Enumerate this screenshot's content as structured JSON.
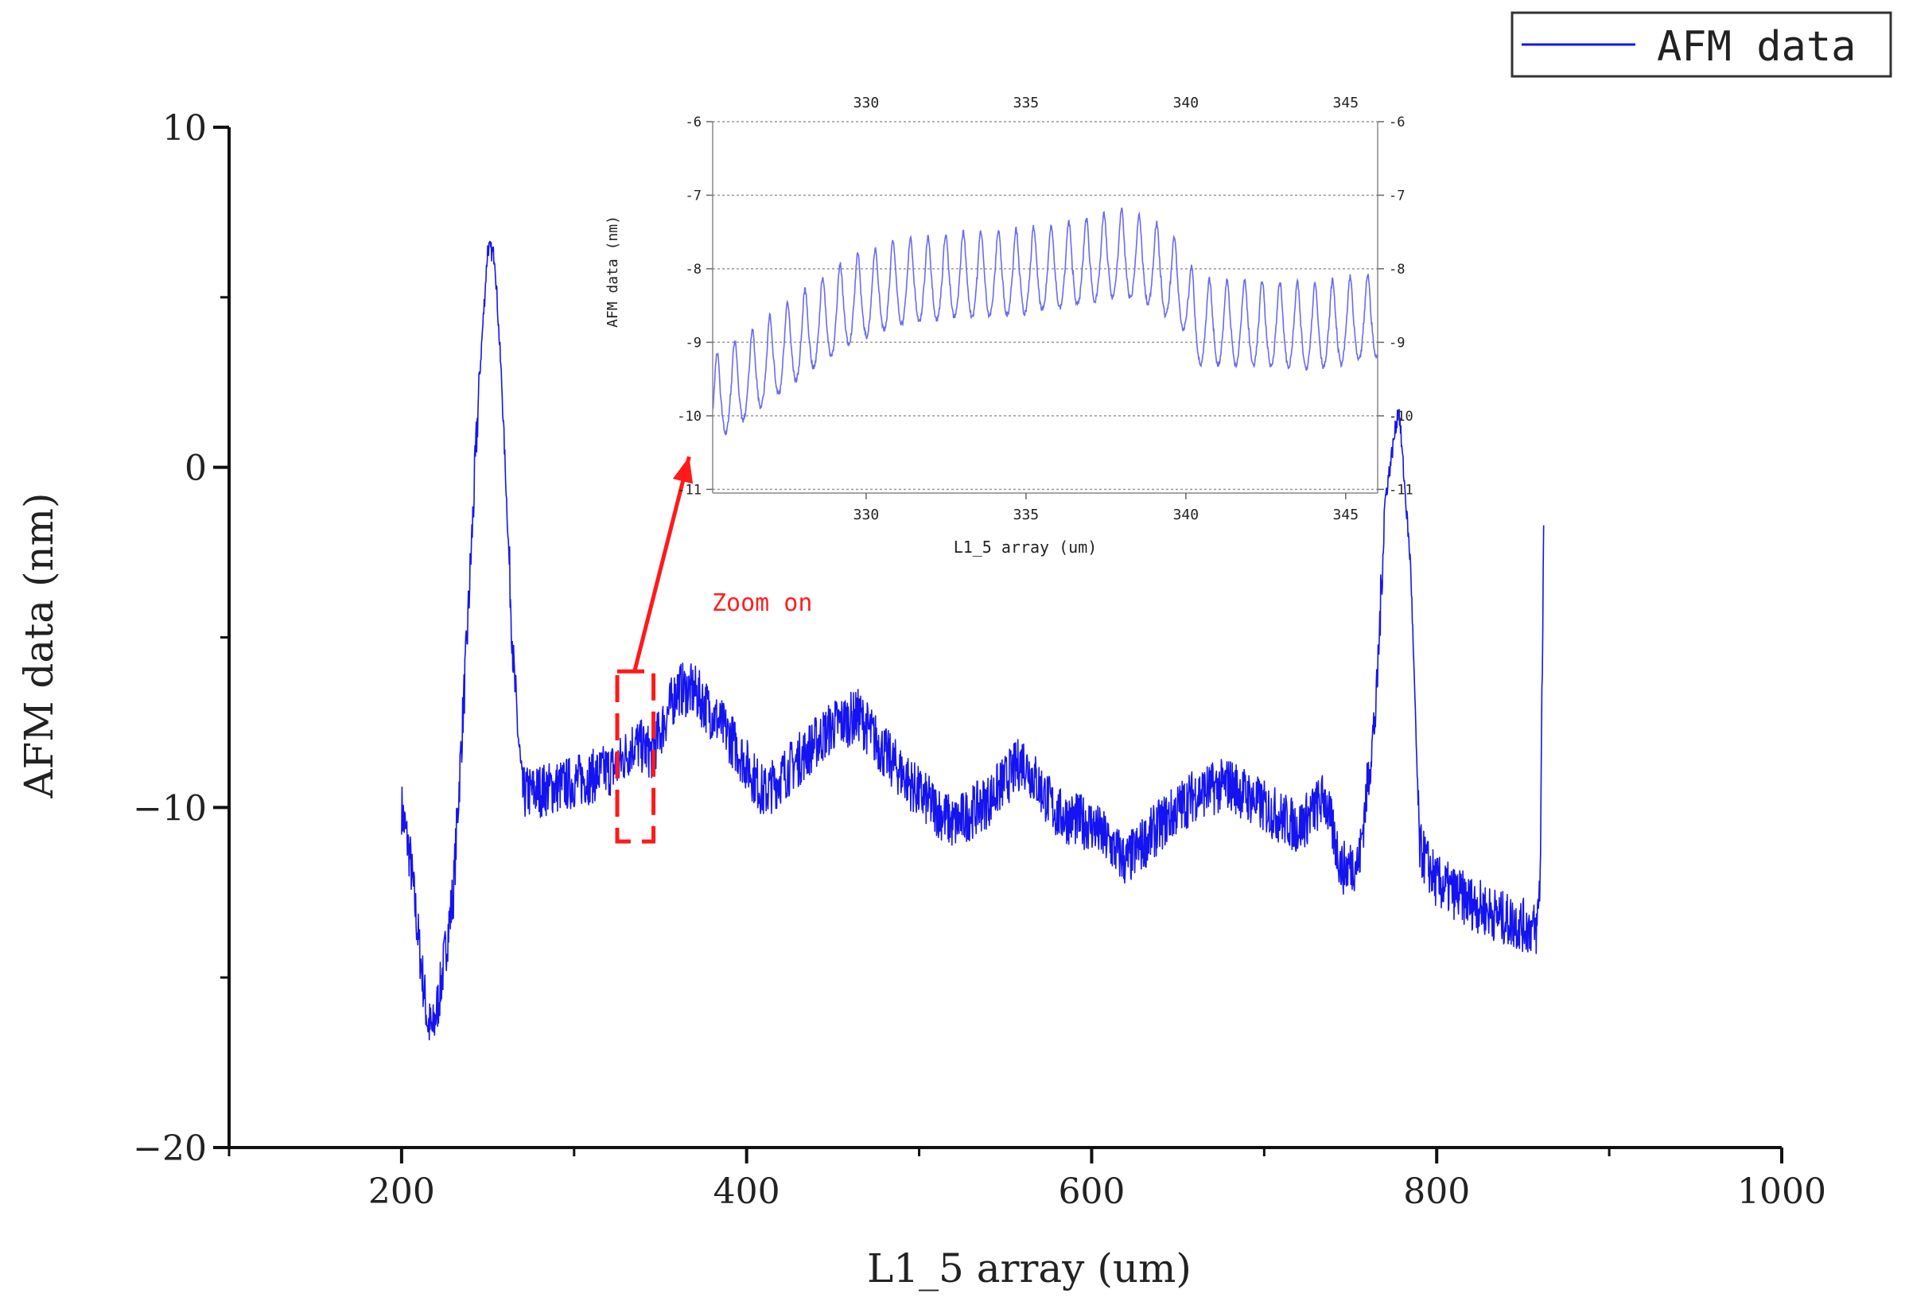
{
  "chart_data": [
    {
      "type": "line",
      "title": "",
      "xlabel": "L1_5 array (um)",
      "ylabel": "AFM data (nm)",
      "xlim": [
        100,
        1000
      ],
      "ylim": [
        -20,
        10
      ],
      "x_ticks": [
        200,
        400,
        600,
        800,
        1000
      ],
      "y_ticks": [
        10,
        0,
        -10,
        -20
      ],
      "x_minor_ticks": [
        100,
        300,
        500,
        700,
        900
      ],
      "y_minor_ticks": [
        5,
        -5,
        -15
      ],
      "legend": {
        "position": "top-right",
        "entries": [
          "AFM data"
        ]
      },
      "series": [
        {
          "name": "AFM data",
          "color": "#1414f0",
          "x": [
            200,
            205,
            210,
            215,
            218,
            222,
            230,
            238,
            245,
            250,
            254,
            258,
            265,
            270,
            290,
            310,
            325,
            335,
            345,
            360,
            370,
            390,
            410,
            430,
            450,
            465,
            480,
            500,
            520,
            540,
            560,
            580,
            600,
            620,
            640,
            660,
            680,
            700,
            720,
            735,
            745,
            755,
            765,
            770,
            778,
            785,
            790,
            800,
            820,
            840,
            858,
            860,
            862
          ],
          "y": [
            -10,
            -11.5,
            -14,
            -16.3,
            -16.6,
            -15.5,
            -12.5,
            -5,
            2.5,
            6.5,
            6.2,
            2.5,
            -6,
            -9.6,
            -9.4,
            -9.1,
            -8.8,
            -8.1,
            -8.4,
            -6.5,
            -6.6,
            -7.9,
            -9.6,
            -8.6,
            -7.6,
            -7.3,
            -8.4,
            -9.6,
            -10.5,
            -9.8,
            -8.6,
            -10.2,
            -10.5,
            -11.6,
            -10.5,
            -9.6,
            -9.3,
            -10,
            -10.6,
            -9.7,
            -11.8,
            -11.6,
            -7,
            -1,
            1.8,
            -3,
            -11.2,
            -12.2,
            -12.8,
            -13.3,
            -13.6,
            -12,
            -1.7
          ]
        }
      ],
      "annotations": [
        {
          "text": "Zoom on",
          "color": "#ff0000",
          "from_x": 335,
          "from_y": -6,
          "to_x": 345,
          "to_y": -2
        }
      ],
      "zoom_region": {
        "x_range": [
          325,
          346
        ],
        "y_range": [
          -11,
          -6
        ]
      }
    },
    {
      "type": "line",
      "title": "",
      "xlabel": "L1_5 array (um)",
      "ylabel": "AFM data (nm)",
      "xlim": [
        325.2,
        346
      ],
      "ylim": [
        -11.05,
        -6
      ],
      "x_ticks": [
        330,
        335,
        340,
        345
      ],
      "y_ticks": [
        -6,
        -7,
        -8,
        -9,
        -10,
        -11
      ],
      "grid": "horizontal-dotted",
      "mirror_axes": true,
      "series": [
        {
          "name": "AFM data",
          "color": "#6a6af2",
          "baseline_x": [
            325.2,
            326.5,
            328,
            329.5,
            331,
            333,
            335,
            336.5,
            338,
            339,
            340,
            340.3,
            342,
            344,
            346
          ],
          "baseline_y": [
            -9.9,
            -9.5,
            -9.0,
            -8.55,
            -8.3,
            -8.2,
            -8.15,
            -8.05,
            -7.9,
            -8.05,
            -8.4,
            -8.85,
            -8.85,
            -8.9,
            -8.75
          ],
          "amplitude_nm": 1.4,
          "period_um": 0.55
        }
      ]
    }
  ]
}
